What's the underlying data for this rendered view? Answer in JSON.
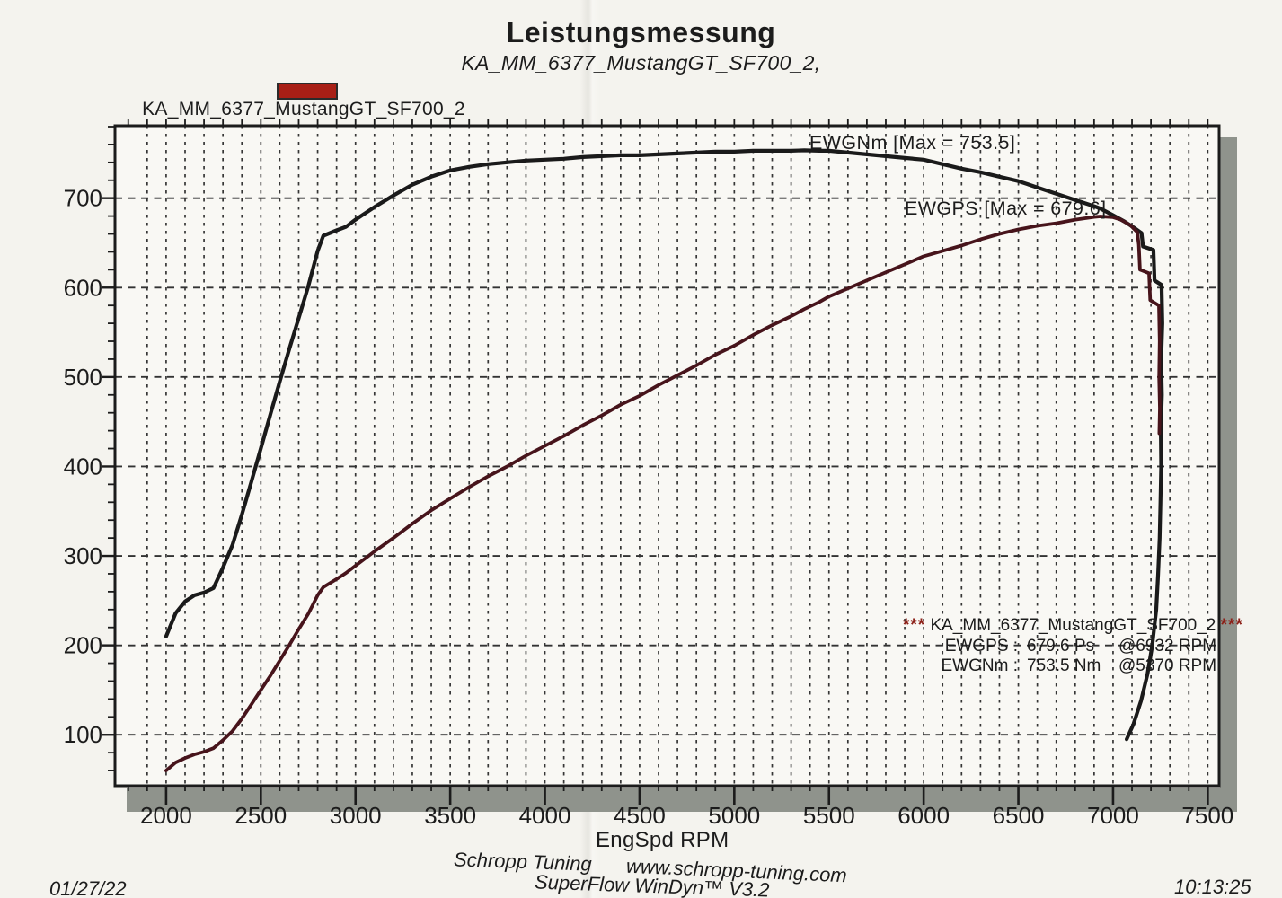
{
  "header": {
    "title": "Leistungsmessung",
    "subtitle": "KA_MM_6377_MustangGT_SF700_2,"
  },
  "legend": {
    "swatch_color": "#a81f16",
    "label": "KA_MM_6377_MustangGT_SF700_2"
  },
  "annotations": {
    "torque_label": "EWGNm  [Max = 753.5]",
    "power_label": "EWGPS  [Max = 679.6]"
  },
  "result_box": {
    "stars_left": "***",
    "title": " KA_MM_6377_MustangGT_SF700_2 ",
    "stars_right": "***",
    "rows": [
      {
        "name": "EWGPS :",
        "value": "679.6 Ps",
        "at": "@6932 RPM"
      },
      {
        "name": "EWGNm :",
        "value": "753.5 Nm",
        "at": "@5370 RPM"
      }
    ]
  },
  "footer": {
    "company": "Schropp Tuning",
    "website": "www.schropp-tuning.com",
    "software": "SuperFlow WinDyn™ V3.2",
    "date": "01/27/22",
    "time": "10:13:25"
  },
  "chart_data": {
    "type": "line",
    "title": "Leistungsmessung",
    "subtitle": "KA_MM_6377_MustangGT_SF700_2,",
    "xlabel": "EngSpd RPM",
    "ylabel": "",
    "xlim": [
      1730,
      7560
    ],
    "ylim": [
      43,
      781
    ],
    "x_ticks": [
      2000,
      2500,
      3000,
      3500,
      4000,
      4500,
      5000,
      5500,
      6000,
      6500,
      7000,
      7500
    ],
    "y_ticks": [
      100,
      200,
      300,
      400,
      500,
      600,
      700
    ],
    "grid": "dashed vertical every 100 RPM, dashed horizontal every 100 units",
    "legend_position": "top-left",
    "series": [
      {
        "name": "EWGNm",
        "unit": "Nm",
        "max": 753.5,
        "max_at_rpm": 5370,
        "color": "#1a1a1a",
        "points": [
          [
            2000,
            210
          ],
          [
            2050,
            236
          ],
          [
            2100,
            249
          ],
          [
            2150,
            256
          ],
          [
            2200,
            259
          ],
          [
            2250,
            264
          ],
          [
            2300,
            287
          ],
          [
            2350,
            312
          ],
          [
            2400,
            346
          ],
          [
            2450,
            383
          ],
          [
            2500,
            420
          ],
          [
            2550,
            458
          ],
          [
            2600,
            495
          ],
          [
            2650,
            531
          ],
          [
            2700,
            566
          ],
          [
            2750,
            601
          ],
          [
            2800,
            641
          ],
          [
            2830,
            658
          ],
          [
            2900,
            664
          ],
          [
            2950,
            668
          ],
          [
            3000,
            676
          ],
          [
            3100,
            690
          ],
          [
            3200,
            703
          ],
          [
            3300,
            715
          ],
          [
            3400,
            724
          ],
          [
            3500,
            731
          ],
          [
            3600,
            735
          ],
          [
            3700,
            738
          ],
          [
            3800,
            740
          ],
          [
            3900,
            742
          ],
          [
            4000,
            743
          ],
          [
            4100,
            744
          ],
          [
            4200,
            746
          ],
          [
            4300,
            747
          ],
          [
            4400,
            748
          ],
          [
            4500,
            748
          ],
          [
            4600,
            749
          ],
          [
            4700,
            750
          ],
          [
            4800,
            751
          ],
          [
            4900,
            752
          ],
          [
            5000,
            752
          ],
          [
            5100,
            753
          ],
          [
            5200,
            753
          ],
          [
            5300,
            753
          ],
          [
            5370,
            753.5
          ],
          [
            5450,
            753
          ],
          [
            5500,
            753
          ],
          [
            5600,
            751
          ],
          [
            5700,
            749
          ],
          [
            5800,
            747
          ],
          [
            5900,
            745
          ],
          [
            6000,
            743
          ],
          [
            6100,
            738
          ],
          [
            6200,
            733
          ],
          [
            6300,
            729
          ],
          [
            6400,
            724
          ],
          [
            6500,
            719
          ],
          [
            6600,
            712
          ],
          [
            6700,
            705
          ],
          [
            6800,
            698
          ],
          [
            6900,
            691
          ],
          [
            6932,
            688.5
          ],
          [
            7000,
            681
          ],
          [
            7060,
            674
          ],
          [
            7110,
            667
          ],
          [
            7150,
            661
          ],
          [
            7158,
            646
          ],
          [
            7213,
            642
          ],
          [
            7219,
            608
          ],
          [
            7256,
            603
          ],
          [
            7260,
            560
          ],
          [
            7254,
            520
          ],
          [
            7258,
            480
          ],
          [
            7252,
            440
          ],
          [
            7254,
            400
          ],
          [
            7250,
            360
          ],
          [
            7246,
            320
          ],
          [
            7238,
            280
          ],
          [
            7228,
            240
          ],
          [
            7207,
            200
          ],
          [
            7182,
            168
          ],
          [
            7148,
            138
          ],
          [
            7108,
            112
          ],
          [
            7072,
            95
          ]
        ]
      },
      {
        "name": "EWGPS",
        "unit": "Ps",
        "max": 679.6,
        "max_at_rpm": 6932,
        "color": "#47141b",
        "points": [
          [
            2000,
            60
          ],
          [
            2050,
            69
          ],
          [
            2100,
            74
          ],
          [
            2150,
            78
          ],
          [
            2200,
            81
          ],
          [
            2250,
            85
          ],
          [
            2300,
            94
          ],
          [
            2350,
            104
          ],
          [
            2400,
            118
          ],
          [
            2450,
            134
          ],
          [
            2500,
            150
          ],
          [
            2550,
            166
          ],
          [
            2600,
            183
          ],
          [
            2650,
            200
          ],
          [
            2700,
            218
          ],
          [
            2750,
            235
          ],
          [
            2800,
            256
          ],
          [
            2830,
            265
          ],
          [
            2900,
            274
          ],
          [
            2950,
            281
          ],
          [
            3000,
            289
          ],
          [
            3100,
            305
          ],
          [
            3200,
            320
          ],
          [
            3300,
            336
          ],
          [
            3400,
            351
          ],
          [
            3500,
            364
          ],
          [
            3600,
            377
          ],
          [
            3700,
            389
          ],
          [
            3800,
            400
          ],
          [
            3900,
            412
          ],
          [
            4000,
            423
          ],
          [
            4100,
            434
          ],
          [
            4200,
            446
          ],
          [
            4300,
            457
          ],
          [
            4400,
            469
          ],
          [
            4500,
            479
          ],
          [
            4600,
            491
          ],
          [
            4700,
            502
          ],
          [
            4800,
            513
          ],
          [
            4900,
            525
          ],
          [
            5000,
            535
          ],
          [
            5100,
            547
          ],
          [
            5200,
            558
          ],
          [
            5300,
            568
          ],
          [
            5370,
            576
          ],
          [
            5450,
            584
          ],
          [
            5500,
            590
          ],
          [
            5600,
            599
          ],
          [
            5700,
            608
          ],
          [
            5800,
            617
          ],
          [
            5900,
            626
          ],
          [
            6000,
            635
          ],
          [
            6100,
            641
          ],
          [
            6200,
            647
          ],
          [
            6300,
            654
          ],
          [
            6400,
            660
          ],
          [
            6500,
            665
          ],
          [
            6600,
            669
          ],
          [
            6700,
            672
          ],
          [
            6800,
            676
          ],
          [
            6900,
            679
          ],
          [
            6932,
            679.6
          ],
          [
            7000,
            678.7
          ],
          [
            7040,
            676
          ],
          [
            7090,
            670
          ],
          [
            7128,
            662
          ],
          [
            7136,
            648
          ],
          [
            7142,
            620
          ],
          [
            7190,
            616
          ],
          [
            7196,
            586
          ],
          [
            7242,
            580
          ],
          [
            7246,
            540
          ],
          [
            7243,
            500
          ],
          [
            7247,
            465
          ],
          [
            7244,
            437
          ]
        ]
      }
    ]
  }
}
